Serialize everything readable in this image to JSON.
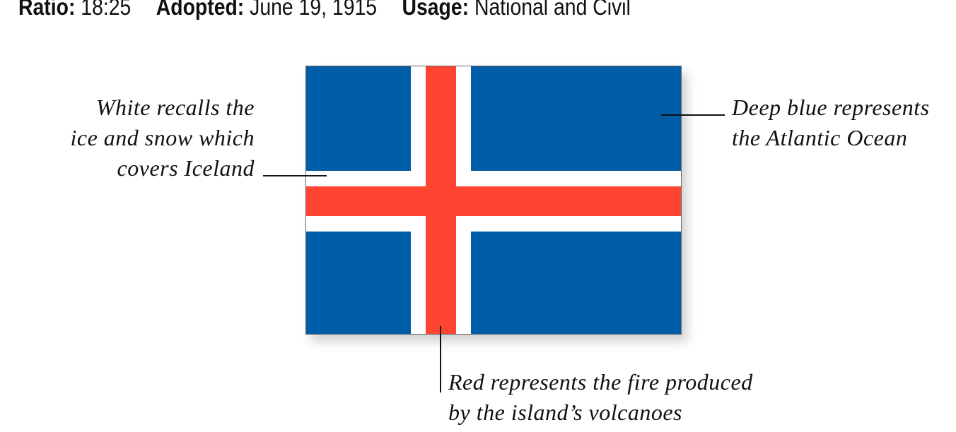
{
  "header": {
    "ratio_label": "Ratio:",
    "ratio_value": "18:25",
    "adopted_label": "Adopted:",
    "adopted_value": "June 19, 1915",
    "usage_label": "Usage:",
    "usage_value": "National and Civil"
  },
  "flag": {
    "colors": {
      "blue": "#005EA8",
      "white": "#FFFFFF",
      "red": "#FF4431"
    }
  },
  "annotations": {
    "white": [
      "White recalls the",
      "ice and snow which",
      "covers Iceland"
    ],
    "blue": [
      "Deep blue represents",
      "the Atlantic Ocean"
    ],
    "red": [
      "Red represents the fire produced",
      "by the island’s volcanoes"
    ]
  }
}
